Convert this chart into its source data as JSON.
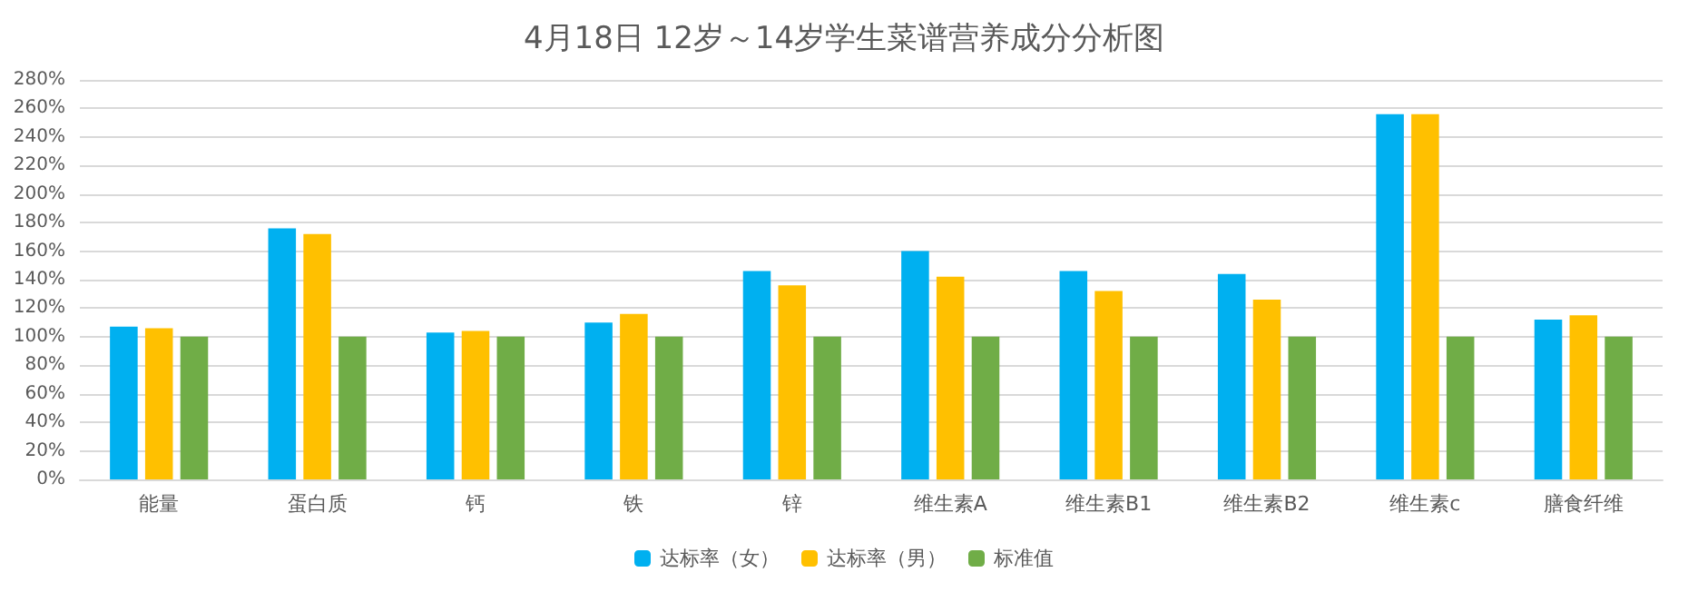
{
  "chart_data": {
    "type": "bar",
    "title": "4月18日 12岁～14岁学生菜谱营养成分分析图",
    "categories": [
      "能量",
      "蛋白质",
      "钙",
      "铁",
      "锌",
      "维生素A",
      "维生素B1",
      "维生素B2",
      "维生素c",
      "膳食纤维"
    ],
    "series": [
      {
        "name": "达标率（女）",
        "color": "#00b0f0",
        "values": [
          107,
          176,
          103,
          110,
          146,
          160,
          146,
          144,
          256,
          112
        ]
      },
      {
        "name": "达标率（男）",
        "color": "#ffc000",
        "values": [
          106,
          172,
          104,
          116,
          136,
          142,
          132,
          126,
          256,
          115
        ]
      },
      {
        "name": "标准值",
        "color": "#70ad47",
        "values": [
          100,
          100,
          100,
          100,
          100,
          100,
          100,
          100,
          100,
          100
        ]
      }
    ],
    "ylim": [
      0,
      280
    ],
    "yticks": [
      {
        "value": 0,
        "label": "0%"
      },
      {
        "value": 20,
        "label": "20%"
      },
      {
        "value": 40,
        "label": "40%"
      },
      {
        "value": 60,
        "label": "60%"
      },
      {
        "value": 80,
        "label": "80%"
      },
      {
        "value": 100,
        "label": "100%"
      },
      {
        "value": 120,
        "label": "120%"
      },
      {
        "value": 140,
        "label": "140%"
      },
      {
        "value": 160,
        "label": "160%"
      },
      {
        "value": 180,
        "label": "180%"
      },
      {
        "value": 200,
        "label": "200%"
      },
      {
        "value": 220,
        "label": "220%"
      },
      {
        "value": 240,
        "label": "240%"
      },
      {
        "value": 260,
        "label": "260%"
      },
      {
        "value": 280,
        "label": "280%"
      }
    ],
    "grid": "y",
    "legend": "bottom"
  }
}
